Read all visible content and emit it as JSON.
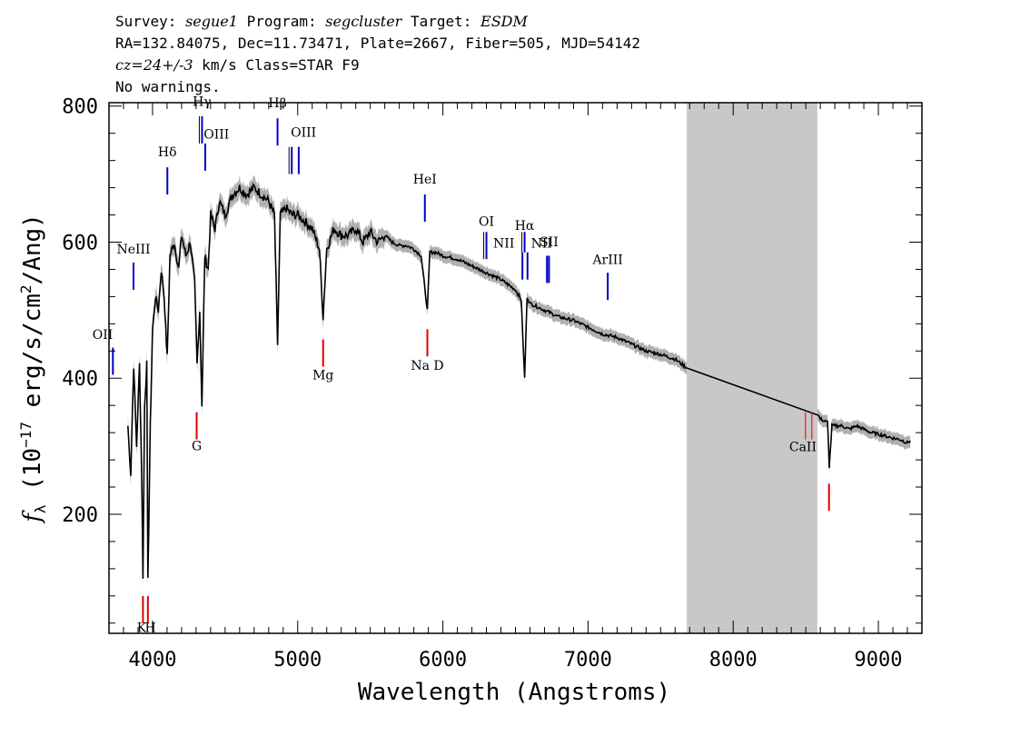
{
  "header": {
    "line1_survey_label": "Survey: ",
    "line1_survey": "segue1",
    "line1_program_label": " Program: ",
    "line1_program": "segcluster",
    "line1_target_label": " Target: ",
    "line1_target": "ESDM",
    "line2": "RA=132.84075, Dec=11.73471, Plate=2667, Fiber=505, MJD=54142",
    "line3_cz": "cz=24+/-3",
    "line3_rest": " km/s Class=STAR F9",
    "line4": "No warnings."
  },
  "colors": {
    "spectrum": "#000000",
    "error_band": "#b0b0b0",
    "masked_region": "#c8c8c8",
    "emission_line": "#0000cc",
    "absorption_line": "#dd0000",
    "thin_line": "#000000"
  },
  "chart_data": {
    "type": "line",
    "xlabel": "Wavelength (Angstroms)",
    "ylabel": "f_λ (10^-17 erg/s/cm^2/Ang)",
    "ylabel_parts": {
      "f": "f",
      "sub": "λ",
      "pre": " (10",
      "exp1": "−17",
      "mid": " erg/s/cm",
      "exp2": "2",
      "post": "/Ang)"
    },
    "xlim": [
      3700,
      9300
    ],
    "ylim": [
      25,
      805
    ],
    "x_ticks": [
      4000,
      5000,
      6000,
      7000,
      8000,
      9000
    ],
    "y_ticks": [
      200,
      400,
      600,
      800
    ],
    "masked_region": [
      7680,
      8580
    ],
    "spectrum": [
      [
        3830,
        330
      ],
      [
        3850,
        260
      ],
      [
        3870,
        420
      ],
      [
        3890,
        300
      ],
      [
        3910,
        420
      ],
      [
        3925,
        260
      ],
      [
        3934,
        110
      ],
      [
        3945,
        360
      ],
      [
        3960,
        420
      ],
      [
        3968,
        100
      ],
      [
        3985,
        330
      ],
      [
        4000,
        470
      ],
      [
        4020,
        520
      ],
      [
        4040,
        500
      ],
      [
        4060,
        560
      ],
      [
        4080,
        520
      ],
      [
        4101,
        430
      ],
      [
        4120,
        580
      ],
      [
        4150,
        600
      ],
      [
        4180,
        560
      ],
      [
        4200,
        610
      ],
      [
        4230,
        580
      ],
      [
        4260,
        600
      ],
      [
        4290,
        540
      ],
      [
        4307,
        420
      ],
      [
        4325,
        500
      ],
      [
        4340,
        360
      ],
      [
        4360,
        580
      ],
      [
        4383,
        560
      ],
      [
        4400,
        640
      ],
      [
        4430,
        620
      ],
      [
        4460,
        660
      ],
      [
        4500,
        640
      ],
      [
        4550,
        670
      ],
      [
        4600,
        680
      ],
      [
        4650,
        670
      ],
      [
        4700,
        680
      ],
      [
        4750,
        670
      ],
      [
        4800,
        660
      ],
      [
        4840,
        640
      ],
      [
        4861,
        450
      ],
      [
        4880,
        640
      ],
      [
        4920,
        650
      ],
      [
        4960,
        640
      ],
      [
        5000,
        640
      ],
      [
        5050,
        630
      ],
      [
        5100,
        620
      ],
      [
        5150,
        590
      ],
      [
        5175,
        490
      ],
      [
        5200,
        590
      ],
      [
        5250,
        620
      ],
      [
        5300,
        610
      ],
      [
        5350,
        610
      ],
      [
        5400,
        620
      ],
      [
        5450,
        600
      ],
      [
        5500,
        615
      ],
      [
        5550,
        600
      ],
      [
        5600,
        610
      ],
      [
        5650,
        600
      ],
      [
        5700,
        595
      ],
      [
        5750,
        595
      ],
      [
        5800,
        590
      ],
      [
        5850,
        580
      ],
      [
        5893,
        500
      ],
      [
        5910,
        585
      ],
      [
        5950,
        585
      ],
      [
        6000,
        580
      ],
      [
        6100,
        575
      ],
      [
        6200,
        565
      ],
      [
        6300,
        555
      ],
      [
        6400,
        545
      ],
      [
        6500,
        530
      ],
      [
        6540,
        515
      ],
      [
        6563,
        400
      ],
      [
        6580,
        520
      ],
      [
        6600,
        510
      ],
      [
        6700,
        500
      ],
      [
        6800,
        490
      ],
      [
        6900,
        485
      ],
      [
        7000,
        475
      ],
      [
        7100,
        465
      ],
      [
        7200,
        460
      ],
      [
        7300,
        450
      ],
      [
        7400,
        440
      ],
      [
        7500,
        435
      ],
      [
        7600,
        428
      ],
      [
        7650,
        420
      ],
      [
        7680,
        415
      ],
      [
        8580,
        348
      ],
      [
        8600,
        340
      ],
      [
        8650,
        335
      ],
      [
        8662,
        270
      ],
      [
        8680,
        330
      ],
      [
        8750,
        330
      ],
      [
        8800,
        325
      ],
      [
        8850,
        330
      ],
      [
        8900,
        325
      ],
      [
        8950,
        320
      ],
      [
        9000,
        318
      ],
      [
        9050,
        315
      ],
      [
        9100,
        312
      ],
      [
        9150,
        310
      ],
      [
        9200,
        305
      ],
      [
        9220,
        308
      ]
    ],
    "emission_lines": [
      {
        "label": "OII",
        "x": 3727,
        "y1": 405,
        "y2": 445,
        "lx": 3727,
        "ly": 458,
        "anchor": "end"
      },
      {
        "label": "NeIII",
        "x": 3869,
        "y1": 530,
        "y2": 570,
        "lx": 3869,
        "ly": 583,
        "anchor": "middle"
      },
      {
        "label": "Hδ",
        "x": 4102,
        "y1": 670,
        "y2": 710,
        "lx": 4102,
        "ly": 726,
        "anchor": "middle"
      },
      {
        "label": "Hγ",
        "x": 4341,
        "y1": 745,
        "y2": 785,
        "lx": 4341,
        "ly": 800,
        "anchor": "middle"
      },
      {
        "label": "OIII",
        "x": 4363,
        "y1": 705,
        "y2": 745,
        "lx": 4440,
        "ly": 752,
        "anchor": "middle"
      },
      {
        "label": "Hβ",
        "x": 4861,
        "y1": 742,
        "y2": 782,
        "lx": 4861,
        "ly": 798,
        "anchor": "middle"
      },
      {
        "label": "OIII",
        "x": 4959,
        "y1": 700,
        "y2": 740,
        "lx": 5040,
        "ly": 755,
        "anchor": "middle"
      },
      {
        "label": "OIII",
        "x": 5007,
        "y1": 700,
        "y2": 740,
        "lx": 5007,
        "ly": 755,
        "anchor": "middle",
        "hidden": true
      },
      {
        "label": "HeI",
        "x": 5876,
        "y1": 630,
        "y2": 670,
        "lx": 5876,
        "ly": 686,
        "anchor": "middle"
      },
      {
        "label": "OI",
        "x": 6300,
        "y1": 575,
        "y2": 615,
        "lx": 6300,
        "ly": 624,
        "anchor": "middle"
      },
      {
        "label": "NII",
        "x": 6548,
        "y1": 545,
        "y2": 585,
        "lx": 6420,
        "ly": 592,
        "anchor": "middle"
      },
      {
        "label": "Hα",
        "x": 6563,
        "y1": 585,
        "y2": 615,
        "lx": 6563,
        "ly": 618,
        "anchor": "middle"
      },
      {
        "label": "NII",
        "x": 6583,
        "y1": 545,
        "y2": 585,
        "lx": 6583,
        "ly": 585,
        "anchor": "middle",
        "hidden": true
      },
      {
        "label": "NII",
        "x": 6717,
        "y1": 540,
        "y2": 580,
        "lx": 6680,
        "ly": 592,
        "anchor": "middle"
      },
      {
        "label": "SII",
        "x": 6731,
        "y1": 540,
        "y2": 580,
        "lx": 6731,
        "ly": 594,
        "anchor": "middle"
      },
      {
        "label": "ArIII",
        "x": 7136,
        "y1": 515,
        "y2": 555,
        "lx": 7136,
        "ly": 568,
        "anchor": "middle"
      }
    ],
    "absorption_lines": [
      {
        "label": "K",
        "x": 3934,
        "y1": 40,
        "y2": 80,
        "lx": 3925,
        "ly": 27,
        "anchor": "middle"
      },
      {
        "label": "H",
        "x": 3968,
        "y1": 40,
        "y2": 80,
        "lx": 3985,
        "ly": 27,
        "anchor": "middle"
      },
      {
        "label": "G",
        "x": 4304,
        "y1": 310,
        "y2": 350,
        "lx": 4304,
        "ly": 294,
        "anchor": "middle"
      },
      {
        "label": "Mg",
        "x": 5175,
        "y1": 417,
        "y2": 457,
        "lx": 5175,
        "ly": 398,
        "anchor": "middle"
      },
      {
        "label": "Na D",
        "x": 5893,
        "y1": 432,
        "y2": 472,
        "lx": 5893,
        "ly": 412,
        "anchor": "middle"
      },
      {
        "label": "",
        "x": 8660,
        "y1": 205,
        "y2": 245,
        "lx": 8660,
        "ly": 0,
        "anchor": "middle"
      }
    ],
    "thin_lines": [
      {
        "x": 4341,
        "y1": 745,
        "y2": 785
      },
      {
        "x": 4959,
        "y1": 700,
        "y2": 740
      },
      {
        "x": 6300,
        "y1": 575,
        "y2": 615
      },
      {
        "x": 6563,
        "y1": 585,
        "y2": 615
      }
    ],
    "caii_lines": {
      "label": "CaII",
      "xs": [
        8498,
        8542,
        8662
      ],
      "y1": 310,
      "y2": 350,
      "lx": 8480,
      "ly": 293
    }
  }
}
